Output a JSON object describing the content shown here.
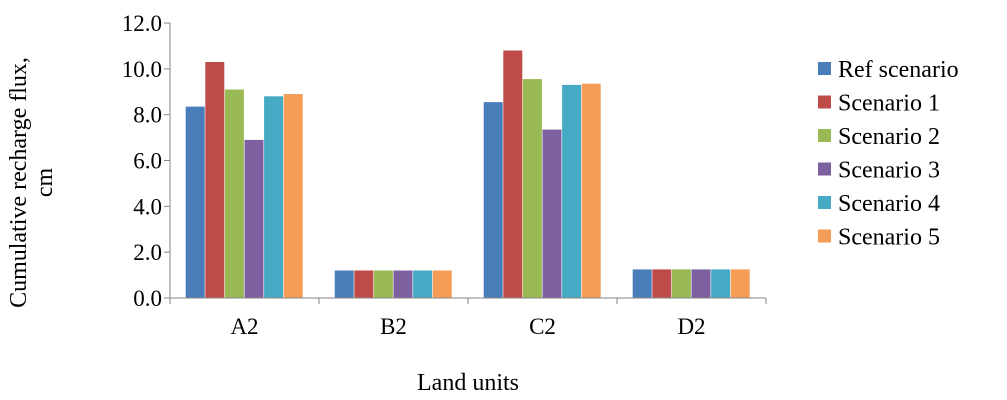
{
  "chart_data": {
    "type": "bar",
    "title": "",
    "xlabel": "Land units",
    "ylabel": "Cumulative recharge flux, cm",
    "ylabel_lines": [
      "Cumulative recharge flux,",
      "cm"
    ],
    "categories": [
      "A2",
      "B2",
      "C2",
      "D2"
    ],
    "ylim": [
      0,
      12
    ],
    "yticks": [
      "0.0",
      "2.0",
      "4.0",
      "6.0",
      "8.0",
      "10.0",
      "12.0"
    ],
    "grid": false,
    "legend_position": "right",
    "series": [
      {
        "name": "Ref scenario",
        "color": "#4A7EBB",
        "values": [
          8.35,
          1.2,
          8.55,
          1.25
        ]
      },
      {
        "name": "Scenario 1",
        "color": "#BE4B48",
        "values": [
          10.3,
          1.2,
          10.8,
          1.25
        ]
      },
      {
        "name": "Scenario 2",
        "color": "#98B954",
        "values": [
          9.1,
          1.2,
          9.55,
          1.25
        ]
      },
      {
        "name": "Scenario 3",
        "color": "#7D60A0",
        "values": [
          6.9,
          1.2,
          7.35,
          1.25
        ]
      },
      {
        "name": "Scenario 4",
        "color": "#46AAC5",
        "values": [
          8.8,
          1.2,
          9.3,
          1.25
        ]
      },
      {
        "name": "Scenario 5",
        "color": "#F59D56",
        "values": [
          8.9,
          1.2,
          9.35,
          1.25
        ]
      }
    ]
  }
}
